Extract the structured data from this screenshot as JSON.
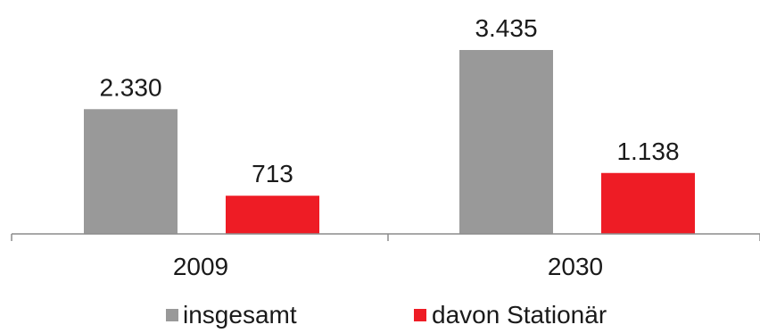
{
  "chart_data": {
    "type": "bar",
    "categories": [
      "2009",
      "2030"
    ],
    "series": [
      {
        "name": "insgesamt",
        "color": "#999999",
        "values": [
          2330,
          3435
        ],
        "labels": [
          "2.330",
          "3.435"
        ]
      },
      {
        "name": "davon Stationär",
        "color": "#ee1c25",
        "values": [
          713,
          1138
        ],
        "labels": [
          "713",
          "1.138"
        ]
      }
    ],
    "title": "",
    "xlabel": "",
    "ylabel": "",
    "ylim": [
      0,
      3435
    ],
    "grid": false,
    "legend_position": "bottom"
  }
}
